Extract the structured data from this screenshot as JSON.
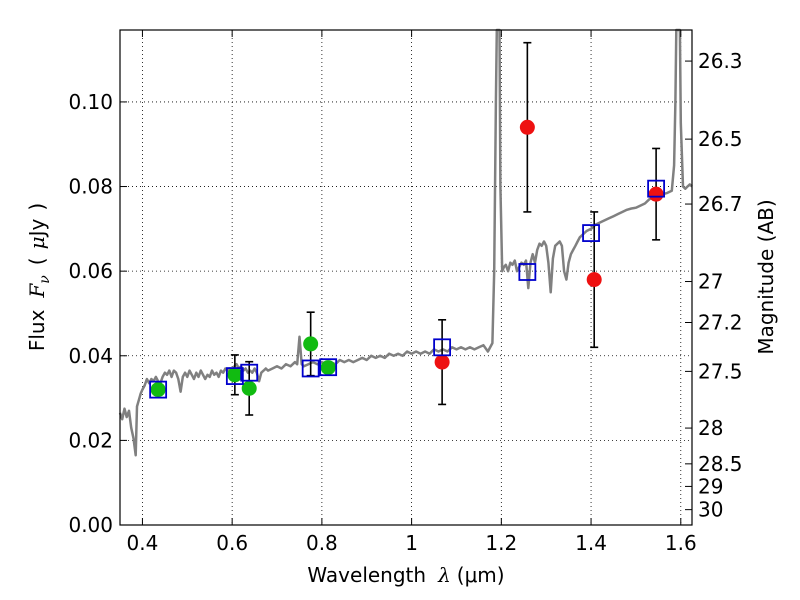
{
  "chart_data": {
    "type": "scatter",
    "xlabel": {
      "text": "Wavelength",
      "symbol": "λ",
      "unit": "(μm)"
    },
    "ylabel": {
      "text": "Flux",
      "symbol": "F",
      "subscript": "ν",
      "unit_open": "(",
      "unit_mu": "μ",
      "unit_rest": "Jy",
      "unit_close": ")"
    },
    "y2label": "Magnitude (AB)",
    "xlim": [
      0.35,
      1.625
    ],
    "ylim": [
      0.0,
      0.117
    ],
    "xticks": [
      0.4,
      0.6,
      0.8,
      1.0,
      1.2,
      1.4,
      1.6
    ],
    "xtick_labels": [
      "0.4",
      "0.6",
      "0.8",
      "1",
      "1.2",
      "1.4",
      "1.6"
    ],
    "yticks": [
      0.0,
      0.02,
      0.04,
      0.06,
      0.08,
      0.1
    ],
    "ytick_labels": [
      "0.00",
      "0.02",
      "0.04",
      "0.06",
      "0.08",
      "0.10"
    ],
    "y2ticks": [
      {
        "mag": 26.3,
        "label": "26.3"
      },
      {
        "mag": 26.5,
        "label": "26.5"
      },
      {
        "mag": 26.7,
        "label": "26.7"
      },
      {
        "mag": 27.0,
        "label": "27"
      },
      {
        "mag": 27.2,
        "label": "27.2"
      },
      {
        "mag": 27.5,
        "label": "27.5"
      },
      {
        "mag": 28.0,
        "label": "28"
      },
      {
        "mag": 28.5,
        "label": "28.5"
      },
      {
        "mag": 29.0,
        "label": "29"
      },
      {
        "mag": 30.0,
        "label": "30"
      }
    ],
    "grid": true,
    "colors": {
      "model": "#808080",
      "green_points": "#11bb11",
      "red_points": "#ee1111",
      "squares": "#0000cc",
      "errorbars": "#000000"
    },
    "model_spectrum": [
      [
        0.35,
        0.0265
      ],
      [
        0.355,
        0.025
      ],
      [
        0.36,
        0.0275
      ],
      [
        0.365,
        0.0255
      ],
      [
        0.37,
        0.027
      ],
      [
        0.375,
        0.023
      ],
      [
        0.38,
        0.0205
      ],
      [
        0.385,
        0.0165
      ],
      [
        0.388,
        0.028
      ],
      [
        0.392,
        0.0295
      ],
      [
        0.396,
        0.031
      ],
      [
        0.4,
        0.032
      ],
      [
        0.405,
        0.033
      ],
      [
        0.41,
        0.0345
      ],
      [
        0.415,
        0.0335
      ],
      [
        0.42,
        0.0345
      ],
      [
        0.425,
        0.034
      ],
      [
        0.43,
        0.035
      ],
      [
        0.435,
        0.034
      ],
      [
        0.44,
        0.0335
      ],
      [
        0.445,
        0.035
      ],
      [
        0.45,
        0.036
      ],
      [
        0.455,
        0.0355
      ],
      [
        0.46,
        0.0365
      ],
      [
        0.465,
        0.035
      ],
      [
        0.47,
        0.0365
      ],
      [
        0.475,
        0.036
      ],
      [
        0.48,
        0.0345
      ],
      [
        0.485,
        0.0315
      ],
      [
        0.49,
        0.035
      ],
      [
        0.495,
        0.036
      ],
      [
        0.5,
        0.035
      ],
      [
        0.505,
        0.0365
      ],
      [
        0.51,
        0.0355
      ],
      [
        0.515,
        0.0345
      ],
      [
        0.52,
        0.036
      ],
      [
        0.525,
        0.035
      ],
      [
        0.53,
        0.0365
      ],
      [
        0.535,
        0.0355
      ],
      [
        0.54,
        0.0345
      ],
      [
        0.545,
        0.0355
      ],
      [
        0.55,
        0.035
      ],
      [
        0.555,
        0.0365
      ],
      [
        0.56,
        0.0355
      ],
      [
        0.565,
        0.036
      ],
      [
        0.57,
        0.035
      ],
      [
        0.575,
        0.0365
      ],
      [
        0.58,
        0.036
      ],
      [
        0.585,
        0.037
      ],
      [
        0.59,
        0.0365
      ],
      [
        0.595,
        0.037
      ],
      [
        0.6,
        0.036
      ],
      [
        0.605,
        0.0375
      ],
      [
        0.61,
        0.038
      ],
      [
        0.615,
        0.037
      ],
      [
        0.62,
        0.0375
      ],
      [
        0.625,
        0.0365
      ],
      [
        0.63,
        0.037
      ],
      [
        0.635,
        0.036
      ],
      [
        0.64,
        0.0365
      ],
      [
        0.645,
        0.036
      ],
      [
        0.65,
        0.037
      ],
      [
        0.655,
        0.036
      ],
      [
        0.66,
        0.034
      ],
      [
        0.665,
        0.036
      ],
      [
        0.67,
        0.0365
      ],
      [
        0.675,
        0.037
      ],
      [
        0.68,
        0.0365
      ],
      [
        0.69,
        0.037
      ],
      [
        0.7,
        0.0375
      ],
      [
        0.71,
        0.037
      ],
      [
        0.72,
        0.038
      ],
      [
        0.73,
        0.0375
      ],
      [
        0.74,
        0.0385
      ],
      [
        0.745,
        0.038
      ],
      [
        0.75,
        0.0445
      ],
      [
        0.755,
        0.038
      ],
      [
        0.76,
        0.0375
      ],
      [
        0.77,
        0.038
      ],
      [
        0.78,
        0.0385
      ],
      [
        0.79,
        0.038
      ],
      [
        0.8,
        0.0385
      ],
      [
        0.81,
        0.038
      ],
      [
        0.82,
        0.0385
      ],
      [
        0.83,
        0.038
      ],
      [
        0.84,
        0.039
      ],
      [
        0.85,
        0.0385
      ],
      [
        0.86,
        0.039
      ],
      [
        0.87,
        0.0385
      ],
      [
        0.88,
        0.039
      ],
      [
        0.89,
        0.0395
      ],
      [
        0.9,
        0.039
      ],
      [
        0.91,
        0.04
      ],
      [
        0.92,
        0.0395
      ],
      [
        0.93,
        0.04
      ],
      [
        0.94,
        0.0395
      ],
      [
        0.95,
        0.0405
      ],
      [
        0.96,
        0.04
      ],
      [
        0.97,
        0.0405
      ],
      [
        0.98,
        0.04
      ],
      [
        0.99,
        0.041
      ],
      [
        1.0,
        0.0405
      ],
      [
        1.01,
        0.041
      ],
      [
        1.02,
        0.0405
      ],
      [
        1.03,
        0.041
      ],
      [
        1.04,
        0.0405
      ],
      [
        1.05,
        0.0415
      ],
      [
        1.06,
        0.041
      ],
      [
        1.07,
        0.0415
      ],
      [
        1.08,
        0.041
      ],
      [
        1.09,
        0.042
      ],
      [
        1.1,
        0.0415
      ],
      [
        1.11,
        0.042
      ],
      [
        1.12,
        0.0415
      ],
      [
        1.13,
        0.042
      ],
      [
        1.14,
        0.0415
      ],
      [
        1.15,
        0.042
      ],
      [
        1.16,
        0.0425
      ],
      [
        1.17,
        0.041
      ],
      [
        1.18,
        0.043
      ],
      [
        1.184,
        0.06
      ],
      [
        1.188,
        0.1
      ],
      [
        1.19,
        0.117
      ],
      [
        1.196,
        0.117
      ],
      [
        1.198,
        0.08
      ],
      [
        1.202,
        0.06
      ],
      [
        1.206,
        0.061
      ],
      [
        1.21,
        0.0615
      ],
      [
        1.215,
        0.06
      ],
      [
        1.22,
        0.062
      ],
      [
        1.225,
        0.0615
      ],
      [
        1.23,
        0.0625
      ],
      [
        1.235,
        0.06
      ],
      [
        1.24,
        0.061
      ],
      [
        1.245,
        0.062
      ],
      [
        1.25,
        0.0615
      ],
      [
        1.255,
        0.0625
      ],
      [
        1.26,
        0.056
      ],
      [
        1.265,
        0.062
      ],
      [
        1.27,
        0.064
      ],
      [
        1.275,
        0.062
      ],
      [
        1.28,
        0.065
      ],
      [
        1.285,
        0.0665
      ],
      [
        1.29,
        0.066
      ],
      [
        1.295,
        0.067
      ],
      [
        1.3,
        0.066
      ],
      [
        1.305,
        0.062
      ],
      [
        1.31,
        0.055
      ],
      [
        1.315,
        0.063
      ],
      [
        1.32,
        0.066
      ],
      [
        1.325,
        0.0665
      ],
      [
        1.33,
        0.067
      ],
      [
        1.335,
        0.066
      ],
      [
        1.34,
        0.06
      ],
      [
        1.345,
        0.058
      ],
      [
        1.35,
        0.062
      ],
      [
        1.355,
        0.064
      ],
      [
        1.36,
        0.065
      ],
      [
        1.365,
        0.066
      ],
      [
        1.37,
        0.067
      ],
      [
        1.375,
        0.068
      ],
      [
        1.38,
        0.0685
      ],
      [
        1.385,
        0.069
      ],
      [
        1.39,
        0.0695
      ],
      [
        1.4,
        0.07
      ],
      [
        1.41,
        0.071
      ],
      [
        1.42,
        0.0715
      ],
      [
        1.43,
        0.072
      ],
      [
        1.44,
        0.0725
      ],
      [
        1.45,
        0.073
      ],
      [
        1.46,
        0.0735
      ],
      [
        1.47,
        0.074
      ],
      [
        1.48,
        0.0745
      ],
      [
        1.49,
        0.0748
      ],
      [
        1.5,
        0.075
      ],
      [
        1.51,
        0.0755
      ],
      [
        1.52,
        0.076
      ],
      [
        1.53,
        0.077
      ],
      [
        1.54,
        0.0775
      ],
      [
        1.55,
        0.078
      ],
      [
        1.56,
        0.0782
      ],
      [
        1.57,
        0.0785
      ],
      [
        1.58,
        0.079
      ],
      [
        1.585,
        0.085
      ],
      [
        1.588,
        0.1
      ],
      [
        1.59,
        0.117
      ],
      [
        1.598,
        0.117
      ],
      [
        1.6,
        0.095
      ],
      [
        1.605,
        0.08
      ],
      [
        1.61,
        0.0795
      ],
      [
        1.615,
        0.08
      ],
      [
        1.62,
        0.0805
      ],
      [
        1.625,
        0.08
      ]
    ],
    "green_points": [
      {
        "x": 0.435,
        "y": 0.032
      },
      {
        "x": 0.606,
        "y": 0.0355,
        "yerr": 0.0047
      },
      {
        "x": 0.638,
        "y": 0.0323,
        "yerr": 0.0063
      },
      {
        "x": 0.775,
        "y": 0.0428,
        "yerr": 0.0075
      },
      {
        "x": 0.814,
        "y": 0.0372
      }
    ],
    "red_points": [
      {
        "x": 1.068,
        "y": 0.0385,
        "yerr": 0.01
      },
      {
        "x": 1.258,
        "y": 0.094,
        "yerr": 0.02
      },
      {
        "x": 1.407,
        "y": 0.058,
        "yerr": 0.016
      },
      {
        "x": 1.545,
        "y": 0.0782,
        "yerr": 0.0108
      }
    ],
    "model_squares": [
      {
        "x": 0.435,
        "y": 0.032
      },
      {
        "x": 0.606,
        "y": 0.0352
      },
      {
        "x": 0.638,
        "y": 0.036
      },
      {
        "x": 0.775,
        "y": 0.037
      },
      {
        "x": 0.814,
        "y": 0.0373
      },
      {
        "x": 1.068,
        "y": 0.042
      },
      {
        "x": 1.258,
        "y": 0.0598
      },
      {
        "x": 1.4,
        "y": 0.069
      },
      {
        "x": 1.545,
        "y": 0.0795
      }
    ]
  }
}
